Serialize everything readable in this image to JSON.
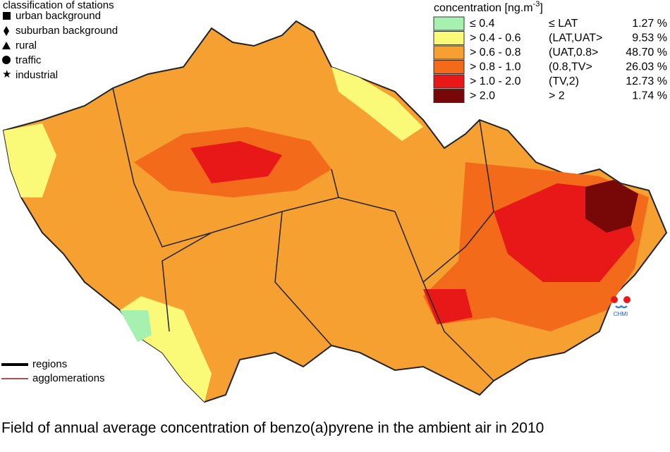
{
  "stations": {
    "title": "classification of stations",
    "items": [
      "urban background",
      "suburban background",
      "rural",
      "traffic",
      "industrial"
    ]
  },
  "legend": {
    "title": "concentration [ng.m",
    "title_sup": "-3",
    "title_end": "]",
    "rows": [
      {
        "range": "≤ 0.4",
        "class": "≤ LAT",
        "share": "1.27 %",
        "color": "#a6f0b0"
      },
      {
        "range": "> 0.4 - 0.6",
        "class": "(LAT,UAT>",
        "share": "9.53 %",
        "color": "#fafa78"
      },
      {
        "range": "> 0.6 - 0.8",
        "class": "(UAT,0.8>",
        "share": "48.70 %",
        "color": "#f5a030"
      },
      {
        "range": "> 0.8 - 1.0",
        "class": "(0.8,TV>",
        "share": "26.03 %",
        "color": "#f26a1a"
      },
      {
        "range": "> 1.0 - 2.0",
        "class": "(TV,2)",
        "share": "12.73 %",
        "color": "#e81818"
      },
      {
        "range": "> 2.0",
        "class": "> 2",
        "share": "1.74 %",
        "color": "#780808"
      }
    ]
  },
  "lines": {
    "regions": "regions",
    "agglomerations": "agglomerations"
  },
  "logo": "CHMI",
  "caption": "Field of annual average concentration of benzo(a)pyrene in the ambient air in 2010"
}
